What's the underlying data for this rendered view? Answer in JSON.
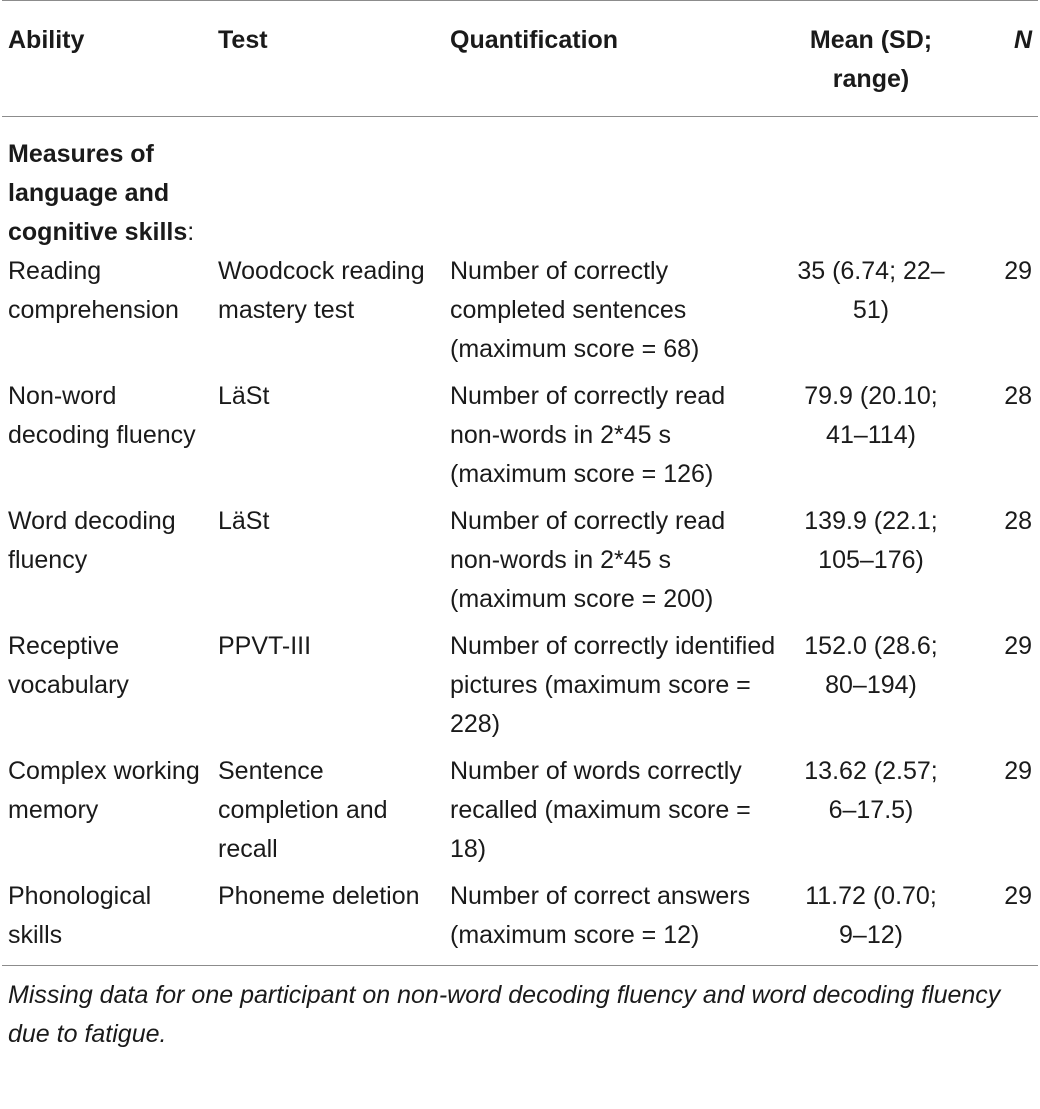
{
  "table": {
    "headers": {
      "ability": "Ability",
      "test": "Test",
      "quantification": "Quantification",
      "mean": "Mean (SD; range)",
      "n": "N"
    },
    "section": {
      "label": "Measures of language and cognitive skills",
      "suffix": ":"
    },
    "rows": [
      {
        "ability": "Reading comprehension",
        "test": "Woodcock reading mastery test",
        "quantification": "Number of correctly completed sentences (maximum score = 68)",
        "mean": "35 (6.74; 22–51)",
        "n": "29"
      },
      {
        "ability": "Non-word decoding fluency",
        "test": "LäSt",
        "quantification": "Number of correctly read non-words in 2*45 s (maximum score = 126)",
        "mean": "79.9 (20.10; 41–114)",
        "n": "28"
      },
      {
        "ability": "Word decoding fluency",
        "test": "LäSt",
        "quantification": "Number of correctly read non-words in 2*45 s (maximum score = 200)",
        "mean": "139.9 (22.1; 105–176)",
        "n": "28"
      },
      {
        "ability": "Receptive vocabulary",
        "test": "PPVT-III",
        "quantification": "Number of correctly identified pictures (maximum score = 228)",
        "mean": "152.0 (28.6; 80–194)",
        "n": "29"
      },
      {
        "ability": "Complex working memory",
        "test": "Sentence completion and recall",
        "quantification": "Number of words correctly recalled (maximum score = 18)",
        "mean": "13.62 (2.57; 6–17.5)",
        "n": "29"
      },
      {
        "ability": "Phonological skills",
        "test": "Phoneme deletion",
        "quantification": "Number of correct answers (maximum score = 12)",
        "mean": "11.72 (0.70; 9–12)",
        "n": "29"
      }
    ]
  },
  "footnote": "Missing data for one participant on non-word decoding fluency and word decoding fluency due to fatigue."
}
